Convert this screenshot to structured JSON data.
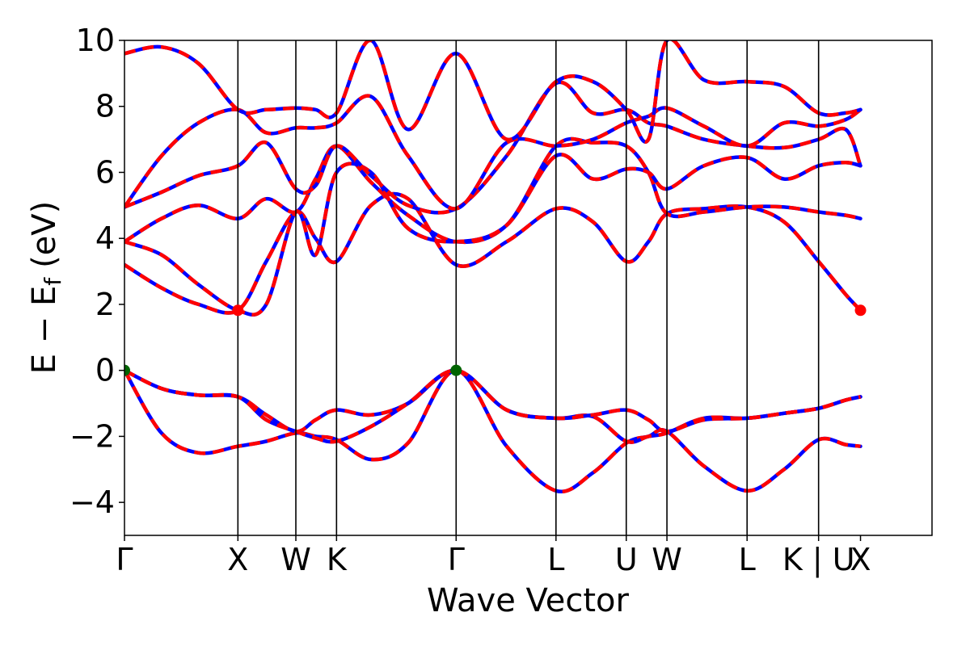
{
  "chart_data": {
    "type": "line",
    "xlabel": "Wave Vector",
    "ylabel": "E − E_f (eV)",
    "ylabel_main": "E − E",
    "ylabel_sub": "f",
    "ylabel_unit": "(eV)",
    "ylim": [
      -5,
      10
    ],
    "xlim": [
      0,
      6.55
    ],
    "grid": false,
    "y_ticks": [
      {
        "value": -4,
        "label": "−4"
      },
      {
        "value": -2,
        "label": "−2"
      },
      {
        "value": 0,
        "label": "0"
      },
      {
        "value": 2,
        "label": "2"
      },
      {
        "value": 4,
        "label": "4"
      },
      {
        "value": 6,
        "label": "6"
      },
      {
        "value": 8,
        "label": "8"
      },
      {
        "value": 10,
        "label": "10"
      }
    ],
    "kpoints": [
      {
        "label": "Γ",
        "x": 0.0
      },
      {
        "label": "X",
        "x": 0.92
      },
      {
        "label": "W",
        "x": 1.39
      },
      {
        "label": "K",
        "x": 1.72
      },
      {
        "label": "Γ",
        "x": 2.69
      },
      {
        "label": "L",
        "x": 3.5
      },
      {
        "label": "U",
        "x": 4.07
      },
      {
        "label": "W",
        "x": 4.4
      },
      {
        "label": "L",
        "x": 5.05
      },
      {
        "label": "K | U",
        "x": 5.63
      },
      {
        "label": "X",
        "x": 5.97
      }
    ],
    "kpoint_label_positions": [
      0.0,
      0.92,
      1.39,
      1.72,
      2.69,
      3.5,
      4.07,
      4.4,
      5.05,
      5.63,
      5.97
    ],
    "colors": {
      "primary": "#0000ff",
      "overlay": "#ff0000",
      "vbm": "#006400",
      "cbm": "#ff0000"
    },
    "special_points": [
      {
        "type": "VBM",
        "x": 0.0,
        "y": 0.0
      },
      {
        "type": "VBM",
        "x": 2.69,
        "y": 0.0
      },
      {
        "type": "CBM",
        "x": 0.92,
        "y": 1.82
      },
      {
        "type": "CBM",
        "x": 5.97,
        "y": 1.82
      }
    ],
    "bands": [
      {
        "x": [
          0,
          0.3,
          0.6,
          0.92,
          1.15,
          1.39,
          1.55,
          1.72,
          2.0,
          2.3,
          2.69,
          3.1,
          3.5,
          3.8,
          4.07,
          4.25,
          4.4,
          4.7,
          5.05,
          5.35,
          5.63,
          5.85,
          5.97
        ],
        "y": [
          0,
          -1.9,
          -2.5,
          -2.3,
          -2.15,
          -1.9,
          -2.0,
          -2.1,
          -2.7,
          -2.2,
          0,
          -2.3,
          -3.65,
          -3.1,
          -2.2,
          -2.0,
          -1.85,
          -2.9,
          -3.65,
          -3.0,
          -2.1,
          -2.25,
          -2.3
        ]
      },
      {
        "x": [
          0,
          0.3,
          0.6,
          0.92,
          1.15,
          1.39,
          1.55,
          1.72,
          2.0,
          2.3,
          2.69,
          3.1,
          3.5,
          3.8,
          4.07,
          4.25,
          4.4,
          4.7,
          5.05,
          5.35,
          5.63,
          5.85,
          5.97
        ],
        "y": [
          0,
          -0.55,
          -0.75,
          -0.8,
          -1.35,
          -1.85,
          -1.5,
          -1.2,
          -1.35,
          -1.0,
          0,
          -1.2,
          -1.45,
          -1.4,
          -2.15,
          -2.0,
          -1.9,
          -1.45,
          -1.45,
          -1.3,
          -1.15,
          -0.9,
          -0.8
        ]
      },
      {
        "x": [
          0,
          0.3,
          0.6,
          0.92,
          1.15,
          1.39,
          1.55,
          1.72,
          2.0,
          2.3,
          2.69,
          3.1,
          3.5,
          3.8,
          4.07,
          4.25,
          4.4,
          4.7,
          5.05,
          5.35,
          5.63,
          5.85,
          5.97
        ],
        "y": [
          0,
          -0.55,
          -0.75,
          -0.8,
          -1.5,
          -1.85,
          -2.05,
          -2.15,
          -1.7,
          -1.0,
          0,
          -1.2,
          -1.45,
          -1.35,
          -1.2,
          -1.5,
          -1.85,
          -1.5,
          -1.45,
          -1.3,
          -1.15,
          -0.9,
          -0.8
        ]
      },
      {
        "x": [
          0,
          0.3,
          0.6,
          0.92,
          1.15,
          1.39,
          1.55,
          1.72,
          2.0,
          2.3,
          2.69,
          3.1,
          3.5,
          3.8,
          4.07,
          4.25,
          4.4,
          4.7,
          5.05,
          5.35,
          5.63,
          5.85,
          5.97
        ],
        "y": [
          3.2,
          2.5,
          2.0,
          1.82,
          3.3,
          4.8,
          4.0,
          3.3,
          5.0,
          5.2,
          3.2,
          3.9,
          4.9,
          4.5,
          3.3,
          3.9,
          4.75,
          4.9,
          4.95,
          4.5,
          3.3,
          2.3,
          1.82
        ]
      },
      {
        "x": [
          0,
          0.3,
          0.6,
          0.92,
          1.15,
          1.39,
          1.55,
          1.72,
          2.0,
          2.3,
          2.69,
          3.1,
          3.5,
          3.8,
          4.07,
          4.25,
          4.4,
          4.7,
          5.05,
          5.35,
          5.63,
          5.85,
          5.97
        ],
        "y": [
          3.9,
          4.6,
          5.0,
          4.6,
          5.2,
          4.8,
          5.8,
          6.8,
          5.7,
          4.7,
          3.9,
          4.4,
          6.8,
          6.9,
          6.8,
          6.0,
          4.75,
          4.8,
          4.95,
          4.95,
          4.8,
          4.7,
          4.6
        ]
      },
      {
        "x": [
          0,
          0.3,
          0.6,
          0.92,
          1.15,
          1.39,
          1.55,
          1.72,
          2.0,
          2.3,
          2.69,
          3.1,
          3.5,
          3.8,
          4.07,
          4.25,
          4.4,
          4.7,
          5.05,
          5.35,
          5.63,
          5.85,
          5.97
        ],
        "y": [
          3.9,
          3.5,
          2.6,
          1.82,
          2.0,
          4.8,
          3.5,
          6.0,
          6.0,
          4.3,
          3.9,
          4.4,
          6.5,
          5.8,
          6.1,
          6.0,
          5.5,
          6.2,
          6.45,
          5.8,
          6.2,
          6.3,
          6.2
        ]
      },
      {
        "x": [
          0,
          0.3,
          0.6,
          0.92,
          1.15,
          1.39,
          1.55,
          1.72,
          2.0,
          2.3,
          2.69,
          3.1,
          3.5,
          3.8,
          4.07,
          4.25,
          4.4,
          4.7,
          5.05,
          5.35,
          5.63,
          5.85,
          5.97
        ],
        "y": [
          4.95,
          5.4,
          5.9,
          6.2,
          6.9,
          5.5,
          5.6,
          6.8,
          5.9,
          5.0,
          4.9,
          6.5,
          8.7,
          7.8,
          7.9,
          7.5,
          7.4,
          7.0,
          6.8,
          6.75,
          7.0,
          7.3,
          6.2
        ]
      },
      {
        "x": [
          0,
          0.3,
          0.6,
          0.92,
          1.15,
          1.39,
          1.55,
          1.72,
          2.0,
          2.3,
          2.69,
          3.1,
          3.5,
          3.8,
          4.07,
          4.25,
          4.4,
          4.7,
          5.05,
          5.35,
          5.63,
          5.85,
          5.97
        ],
        "y": [
          4.95,
          6.5,
          7.5,
          7.9,
          7.2,
          7.35,
          7.35,
          7.5,
          8.3,
          6.5,
          4.9,
          6.9,
          6.8,
          7.0,
          7.5,
          7.7,
          7.95,
          7.4,
          6.8,
          7.5,
          7.4,
          7.6,
          7.9
        ]
      },
      {
        "x": [
          0,
          0.3,
          0.6,
          0.92,
          1.15,
          1.39,
          1.55,
          1.72,
          2.0,
          2.3,
          2.69,
          3.1,
          3.5,
          3.8,
          4.07,
          4.25,
          4.4,
          4.7,
          5.05,
          5.35,
          5.63,
          5.85,
          5.97
        ],
        "y": [
          9.6,
          9.8,
          9.3,
          7.9,
          7.9,
          7.95,
          7.9,
          7.8,
          10.0,
          7.3,
          9.6,
          7.0,
          8.75,
          8.75,
          7.9,
          7.0,
          10.0,
          8.8,
          8.75,
          8.6,
          7.8,
          7.8,
          7.9
        ]
      }
    ]
  }
}
